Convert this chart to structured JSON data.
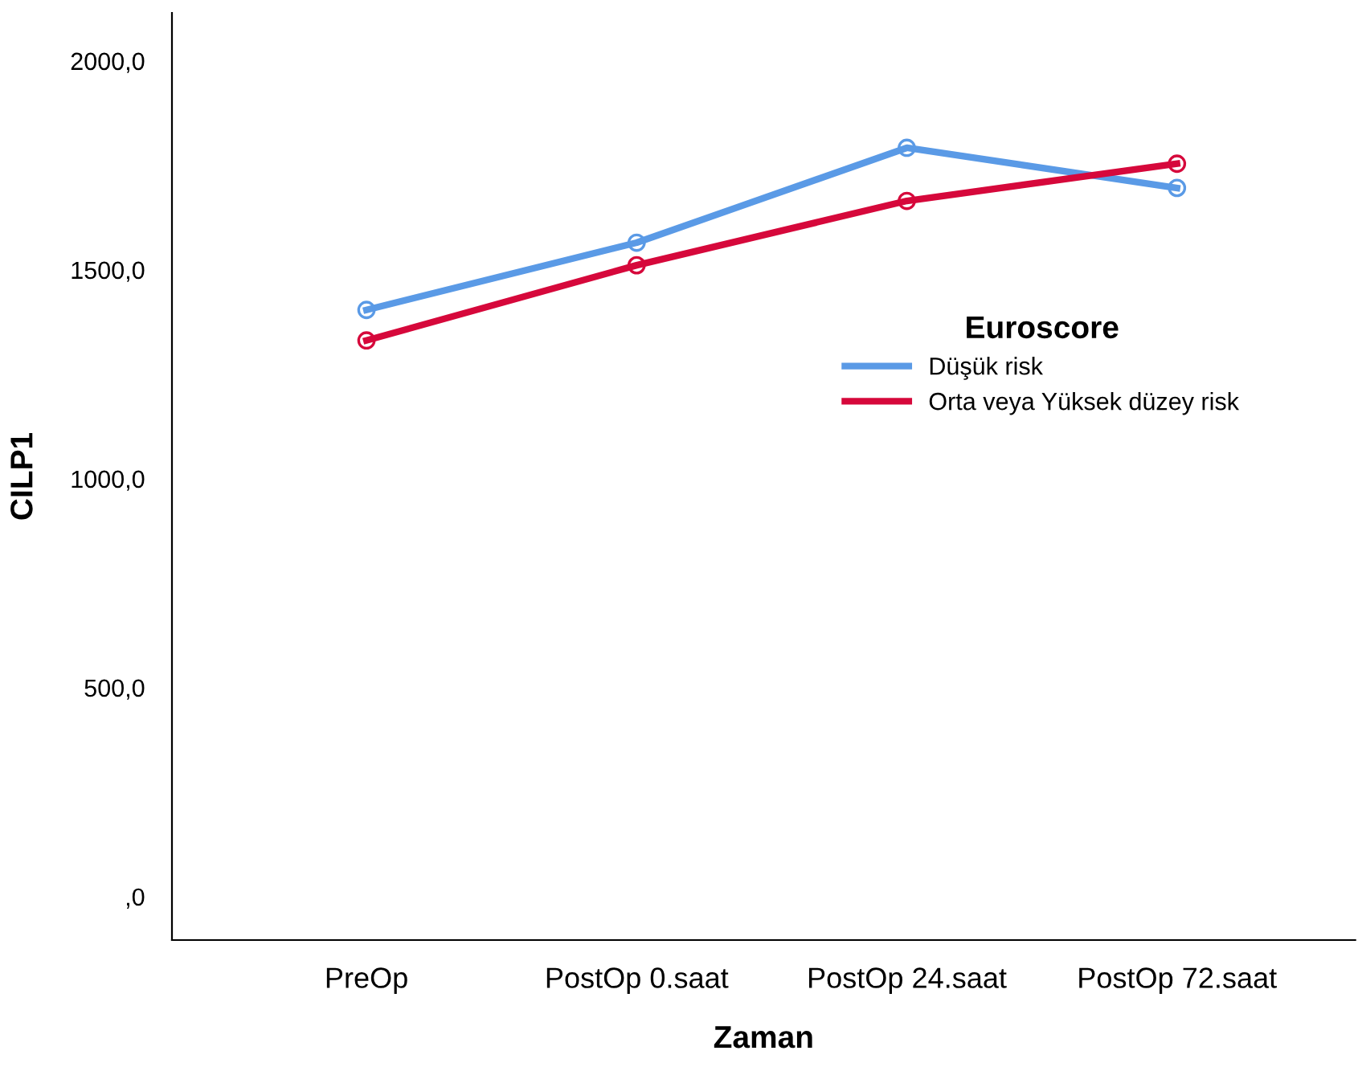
{
  "chart_data": {
    "type": "line",
    "xlabel": "Zaman",
    "ylabel": "CILP1",
    "legend_title": "Euroscore",
    "categories": [
      "PreOp",
      "PostOp 0.saat",
      "PostOp 24.saat",
      "PostOp 72.saat"
    ],
    "series": [
      {
        "name": "Düşük risk",
        "color": "#5a9ae6",
        "values": [
          1404,
          1565,
          1792,
          1696
        ]
      },
      {
        "name": "Orta veya Yüksek düzey risk",
        "color": "#d6083b",
        "values": [
          1331,
          1511,
          1665,
          1754
        ]
      }
    ],
    "ylim": [
      -104,
      2115
    ],
    "yticks": [
      {
        "value": 0,
        "label": ",0"
      },
      {
        "value": 500,
        "label": "500,0"
      },
      {
        "value": 1000,
        "label": "1000,0"
      },
      {
        "value": 1500,
        "label": "1500,0"
      },
      {
        "value": 2000,
        "label": "2000,0"
      }
    ],
    "marker": "circle",
    "line_style": "solid",
    "grid": false,
    "legend": "right"
  }
}
